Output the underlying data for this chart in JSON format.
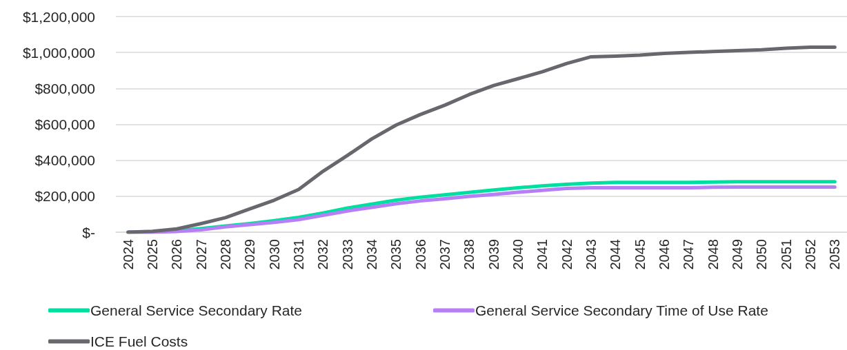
{
  "chart_data": {
    "type": "line",
    "categories": [
      "2024",
      "2025",
      "2026",
      "2027",
      "2028",
      "2029",
      "2030",
      "2031",
      "2032",
      "2033",
      "2034",
      "2035",
      "2036",
      "2037",
      "2038",
      "2039",
      "2040",
      "2041",
      "2042",
      "2043",
      "2044",
      "2045",
      "2046",
      "2047",
      "2048",
      "2049",
      "2050",
      "2051",
      "2052",
      "2053"
    ],
    "series": [
      {
        "name": "General Service Secondary Rate",
        "color": "#00dfa2",
        "values": [
          0,
          1000,
          8000,
          20000,
          35000,
          48000,
          64000,
          83000,
          107000,
          134000,
          156000,
          178000,
          195000,
          208000,
          221000,
          235000,
          247000,
          258000,
          266000,
          273000,
          277000,
          277000,
          277000,
          277000,
          279000,
          281000,
          281000,
          281000,
          281000,
          281000
        ]
      },
      {
        "name": "General Service Secondary Time of Use Rate",
        "color": "#b77ff5",
        "values": [
          0,
          0,
          4000,
          13000,
          30000,
          42000,
          55000,
          70000,
          94000,
          118000,
          138000,
          158000,
          174000,
          186000,
          199000,
          210000,
          222000,
          233000,
          243000,
          247000,
          247000,
          247000,
          247000,
          247000,
          250000,
          251000,
          251000,
          251000,
          251000,
          251000
        ]
      },
      {
        "name": "ICE Fuel Costs",
        "color": "#67686d",
        "values": [
          0,
          5000,
          18000,
          48000,
          81000,
          130000,
          178000,
          238000,
          339000,
          427000,
          519000,
          596000,
          655000,
          707000,
          766000,
          816000,
          854000,
          893000,
          939000,
          976000,
          980000,
          985000,
          995000,
          1001000,
          1005000,
          1010000,
          1015000,
          1024000,
          1029000,
          1029000
        ]
      }
    ],
    "ylim": [
      0,
      1200000
    ],
    "yticks": [
      {
        "value": 0,
        "label": "$-"
      },
      {
        "value": 200000,
        "label": "$200,000"
      },
      {
        "value": 400000,
        "label": "$400,000"
      },
      {
        "value": 600000,
        "label": "$600,000"
      },
      {
        "value": 800000,
        "label": "$800,000"
      },
      {
        "value": 1000000,
        "label": "$1,000,000"
      },
      {
        "value": 1200000,
        "label": "$1,200,000"
      }
    ],
    "grid": "y",
    "legend": "bottom",
    "marker": "none"
  }
}
